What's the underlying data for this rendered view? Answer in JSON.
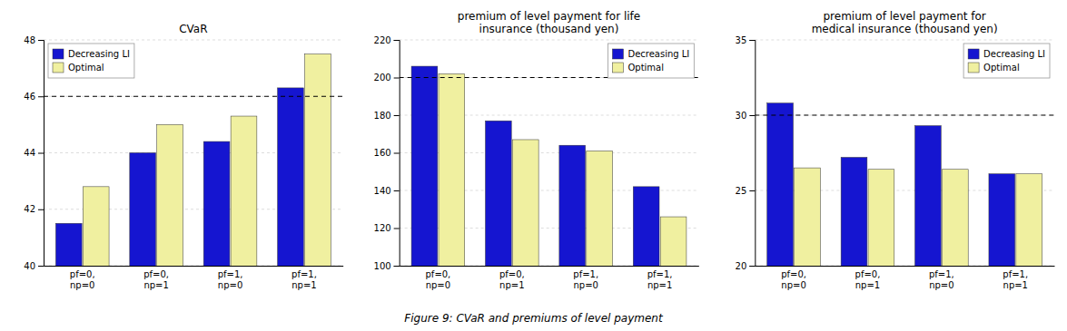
{
  "chart_data": [
    {
      "type": "bar",
      "title": "CVaR",
      "categories": [
        "pf=0,\nnp=0",
        "pf=0,\nnp=1",
        "pf=1,\nnp=0",
        "pf=1,\nnp=1"
      ],
      "series": [
        {
          "name": "Decreasing LI",
          "color": "#1515d0",
          "values": [
            41.5,
            44.0,
            44.4,
            46.3
          ]
        },
        {
          "name": "Optimal",
          "color": "#f0f0a0",
          "values": [
            42.8,
            45.0,
            45.3,
            47.5
          ]
        }
      ],
      "reference_line": 46.0,
      "ylim": [
        40,
        48
      ],
      "yticks": [
        40,
        42,
        44,
        46,
        48
      ],
      "grid": true,
      "legend": "upper left"
    },
    {
      "type": "bar",
      "title": "premium of level payment for life\ninsurance (thousand yen)",
      "categories": [
        "pf=0,\nnp=0",
        "pf=0,\nnp=1",
        "pf=1,\nnp=0",
        "pf=1,\nnp=1"
      ],
      "series": [
        {
          "name": "Decreasing LI",
          "color": "#1515d0",
          "values": [
            206,
            177,
            164,
            142
          ]
        },
        {
          "name": "Optimal",
          "color": "#f0f0a0",
          "values": [
            202,
            167,
            161,
            126
          ]
        }
      ],
      "reference_line": 200.0,
      "ylim": [
        100,
        220
      ],
      "yticks": [
        100,
        120,
        140,
        160,
        180,
        200,
        220
      ],
      "grid": true,
      "legend": "upper right"
    },
    {
      "type": "bar",
      "title": "premium of level payment for\nmedical insurance (thousand yen)",
      "categories": [
        "pf=0,\nnp=0",
        "pf=0,\nnp=1",
        "pf=1,\nnp=0",
        "pf=1,\nnp=1"
      ],
      "series": [
        {
          "name": "Decreasing LI",
          "color": "#1515d0",
          "values": [
            30.8,
            27.2,
            29.3,
            26.1
          ]
        },
        {
          "name": "Optimal",
          "color": "#f0f0a0",
          "values": [
            26.5,
            26.4,
            26.4,
            26.1
          ]
        }
      ],
      "reference_line": 30.0,
      "ylim": [
        20,
        35
      ],
      "yticks": [
        20,
        25,
        30,
        35
      ],
      "grid": true,
      "legend": "upper right"
    }
  ],
  "caption": "Figure 9: CVaR and premiums of level payment"
}
